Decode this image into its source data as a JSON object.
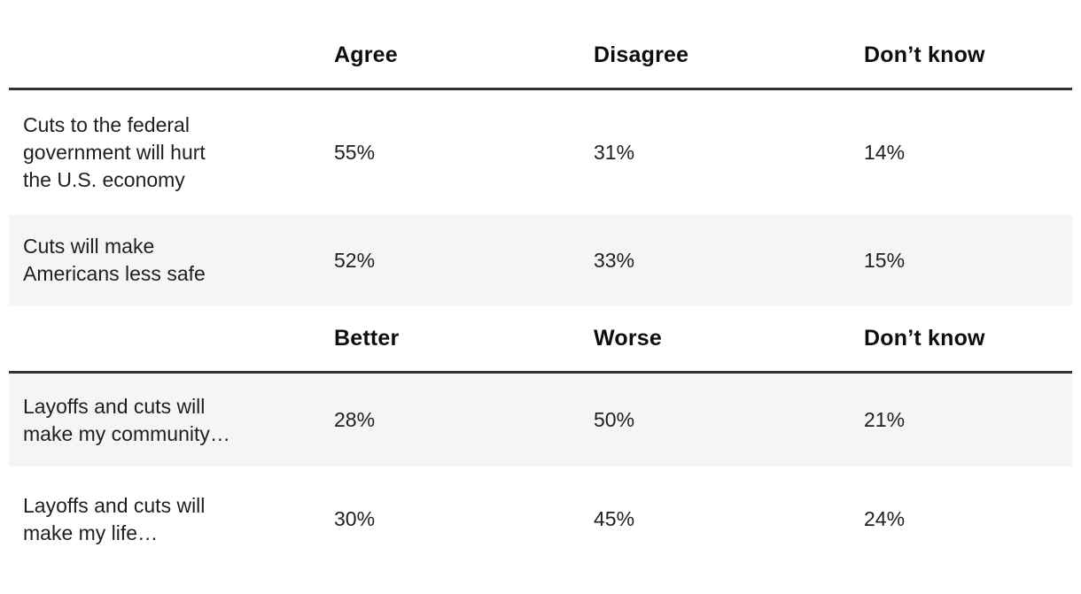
{
  "table": {
    "colors": {
      "rule": "#333333",
      "shaded_row_bg": "#f5f5f5",
      "header_text": "#0d0d0d",
      "body_text": "#1f1f1f"
    },
    "sections": [
      {
        "headers": {
          "col1": "Agree",
          "col2": "Disagree",
          "col3": "Don’t know"
        },
        "rows": [
          {
            "question": "Cuts to the federal\ngovernment will hurt\nthe U.S. economy",
            "values": [
              "55%",
              "31%",
              "14%"
            ]
          },
          {
            "question": "Cuts will make\nAmericans less safe",
            "values": [
              "52%",
              "33%",
              "15%"
            ]
          }
        ]
      },
      {
        "headers": {
          "col1": "Better",
          "col2": "Worse",
          "col3": "Don’t know"
        },
        "rows": [
          {
            "question": "Layoffs and cuts will\nmake my community…",
            "values": [
              "28%",
              "50%",
              "21%"
            ]
          },
          {
            "question": "Layoffs and cuts will\nmake my life…",
            "values": [
              "30%",
              "45%",
              "24%"
            ]
          }
        ]
      }
    ]
  },
  "chart_data": {
    "type": "table",
    "title": "",
    "tables": [
      {
        "columns": [
          "",
          "Agree",
          "Disagree",
          "Don’t know"
        ],
        "rows": [
          [
            "Cuts to the federal government will hurt the U.S. economy",
            55,
            31,
            14
          ],
          [
            "Cuts will make Americans less safe",
            52,
            33,
            15
          ]
        ],
        "value_unit": "%"
      },
      {
        "columns": [
          "",
          "Better",
          "Worse",
          "Don’t know"
        ],
        "rows": [
          [
            "Layoffs and cuts will make my community…",
            28,
            50,
            21
          ],
          [
            "Layoffs and cuts will make my life…",
            30,
            45,
            24
          ]
        ],
        "value_unit": "%"
      }
    ]
  }
}
